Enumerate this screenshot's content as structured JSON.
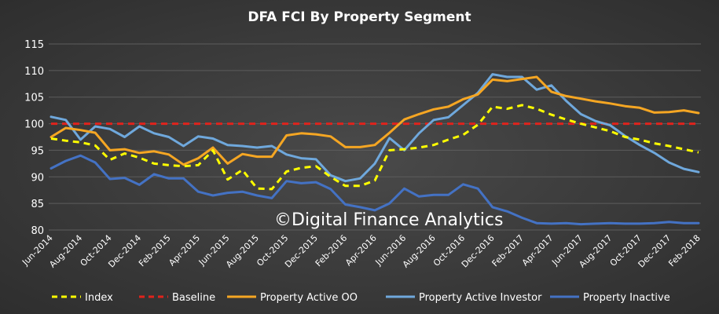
{
  "chart_data": {
    "type": "line",
    "title": "DFA FCI By Property Segment",
    "watermark": "©Digital Finance Analytics",
    "xlabel": "",
    "ylabel": "",
    "ylim": [
      80,
      115
    ],
    "yticks": [
      80,
      85,
      90,
      95,
      100,
      105,
      110,
      115
    ],
    "grid": true,
    "legend_position": "bottom",
    "x": [
      "Jun-2014",
      "Jul-2014",
      "Aug-2014",
      "Sep-2014",
      "Oct-2014",
      "Nov-2014",
      "Dec-2014",
      "Jan-2015",
      "Feb-2015",
      "Mar-2015",
      "Apr-2015",
      "May-2015",
      "Jun-2015",
      "Jul-2015",
      "Aug-2015",
      "Sep-2015",
      "Oct-2015",
      "Nov-2015",
      "Dec-2015",
      "Jan-2016",
      "Feb-2016",
      "Mar-2016",
      "Apr-2016",
      "May-2016",
      "Jun-2016",
      "Jul-2016",
      "Aug-2016",
      "Sep-2016",
      "Oct-2016",
      "Nov-2016",
      "Dec-2016",
      "Jan-2017",
      "Feb-2017",
      "Mar-2017",
      "Apr-2017",
      "May-2017",
      "Jun-2017",
      "Jul-2017",
      "Aug-2017",
      "Sep-2017",
      "Oct-2017",
      "Nov-2017",
      "Dec-2017",
      "Jan-2018",
      "Feb-2018"
    ],
    "tick_labels": [
      "Jun-2014",
      "Aug-2014",
      "Oct-2014",
      "Dec-2014",
      "Feb-2015",
      "Apr-2015",
      "Jun-2015",
      "Aug-2015",
      "Oct-2015",
      "Dec-2015",
      "Feb-2016",
      "Apr-2016",
      "Jun-2016",
      "Aug-2016",
      "Oct-2016",
      "Dec-2016",
      "Feb-2017",
      "Apr-2017",
      "Jun-2017",
      "Aug-2017",
      "Oct-2017",
      "Dec-2017",
      "Feb-2018"
    ],
    "series": [
      {
        "name": "Index",
        "color": "#ffff00",
        "style": "dashed",
        "values": [
          97.2,
          96.8,
          96.5,
          95.9,
          93.2,
          94.4,
          93.6,
          92.5,
          92.2,
          92.0,
          92.2,
          95.0,
          89.5,
          91.3,
          87.8,
          87.7,
          91.0,
          91.7,
          92.0,
          90.0,
          88.3,
          88.3,
          89.3,
          95.0,
          95.2,
          95.5,
          96.0,
          97.0,
          97.9,
          99.8,
          103.2,
          102.8,
          103.5,
          102.8,
          101.7,
          100.8,
          100.0,
          99.3,
          98.6,
          97.5,
          97.0,
          96.3,
          95.8,
          95.2,
          94.6
        ]
      },
      {
        "name": "Baseline",
        "color": "#e0231c",
        "style": "dashed",
        "values": [
          100,
          100,
          100,
          100,
          100,
          100,
          100,
          100,
          100,
          100,
          100,
          100,
          100,
          100,
          100,
          100,
          100,
          100,
          100,
          100,
          100,
          100,
          100,
          100,
          100,
          100,
          100,
          100,
          100,
          100,
          100,
          100,
          100,
          100,
          100,
          100,
          100,
          100,
          100,
          100,
          100,
          100,
          100,
          100,
          100
        ]
      },
      {
        "name": "Property Active OO",
        "color": "#f5a623",
        "style": "solid",
        "values": [
          97.5,
          99.2,
          98.8,
          98.3,
          95.0,
          95.2,
          94.5,
          94.8,
          94.2,
          92.3,
          93.5,
          95.5,
          92.5,
          94.3,
          93.8,
          93.8,
          97.8,
          98.2,
          98.0,
          97.6,
          95.6,
          95.6,
          96.0,
          98.3,
          100.8,
          101.8,
          102.7,
          103.2,
          104.6,
          105.5,
          108.3,
          108.0,
          108.4,
          108.8,
          106.0,
          105.2,
          104.7,
          104.2,
          103.8,
          103.3,
          103.0,
          102.1,
          102.2,
          102.5,
          102.0
        ]
      },
      {
        "name": "Property Active Investor",
        "color": "#6fa8dc",
        "style": "solid",
        "values": [
          101.3,
          100.7,
          97.0,
          99.5,
          99.0,
          97.5,
          99.5,
          98.2,
          97.5,
          95.8,
          97.6,
          97.2,
          96.0,
          95.8,
          95.5,
          95.8,
          94.2,
          93.5,
          93.3,
          90.3,
          89.2,
          89.7,
          92.5,
          97.3,
          95.0,
          98.2,
          100.7,
          101.2,
          103.5,
          105.8,
          109.3,
          108.8,
          108.8,
          106.4,
          107.2,
          104.3,
          101.8,
          100.5,
          99.7,
          97.7,
          96.0,
          94.5,
          92.7,
          91.5,
          90.9
        ]
      },
      {
        "name": "Property Inactive",
        "color": "#4472c4",
        "style": "solid",
        "values": [
          91.6,
          93.0,
          94.0,
          92.7,
          89.6,
          89.8,
          88.5,
          90.5,
          89.7,
          89.7,
          87.2,
          86.5,
          87.0,
          87.2,
          86.5,
          86.0,
          89.2,
          88.8,
          89.0,
          87.7,
          84.8,
          84.3,
          83.7,
          85.0,
          87.8,
          86.3,
          86.6,
          86.6,
          88.6,
          87.8,
          84.3,
          83.5,
          82.3,
          81.3,
          81.2,
          81.3,
          81.1,
          81.2,
          81.3,
          81.2,
          81.2,
          81.3,
          81.5,
          81.3,
          81.3
        ]
      }
    ]
  }
}
